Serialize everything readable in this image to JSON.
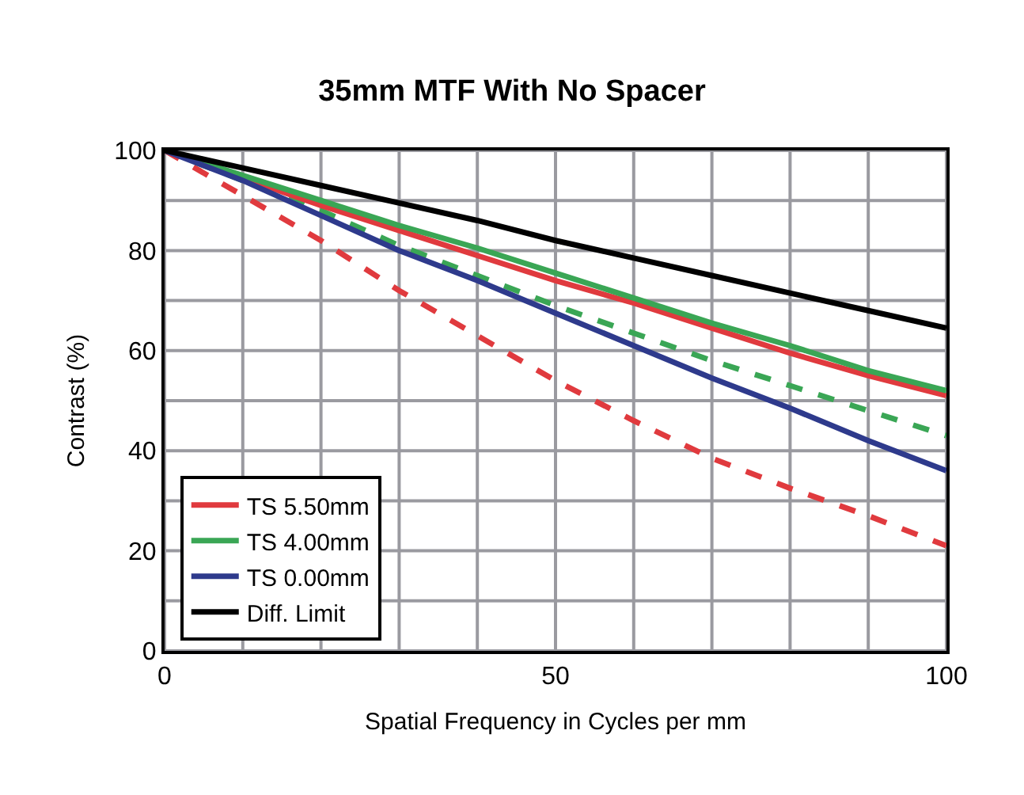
{
  "chart_data": {
    "type": "line",
    "title": "35mm MTF With No Spacer",
    "xlabel": "Spatial Frequency in Cycles per mm",
    "ylabel": "Contrast (%)",
    "x": [
      0,
      10,
      20,
      30,
      40,
      50,
      60,
      70,
      80,
      90,
      100
    ],
    "series": [
      {
        "name": "TS 5.50mm",
        "color": "#e03a3e",
        "values": [
          100,
          94.5,
          89,
          84,
          79,
          74,
          69.5,
          64.5,
          59.5,
          55,
          51
        ]
      },
      {
        "name": "TS 4.00mm",
        "color": "#3aa655",
        "values": [
          100,
          95,
          90,
          85,
          80.5,
          75.5,
          70.5,
          65.5,
          61,
          56,
          52
        ]
      },
      {
        "name": "TS 0.00mm",
        "color": "#2e3a8c",
        "values": [
          100,
          94,
          87,
          80,
          74,
          67.5,
          61,
          54.5,
          48.5,
          42,
          36
        ]
      },
      {
        "name": "Diff. Limit",
        "color": "#000000",
        "values": [
          100,
          96.5,
          93,
          89.5,
          86,
          82,
          78.5,
          75,
          71.5,
          68,
          64.5
        ]
      },
      {
        "color": "#3aa655",
        "line_style": "dashed",
        "values": [
          100,
          94,
          88,
          81,
          75,
          69,
          63.5,
          58,
          53,
          48,
          43
        ]
      },
      {
        "color": "#e03a3e",
        "line_style": "dashed",
        "values": [
          100,
          91,
          82,
          72,
          63,
          54,
          46,
          38.5,
          32.5,
          27,
          21
        ]
      }
    ],
    "xlim": [
      0,
      100
    ],
    "ylim": [
      0,
      100
    ],
    "xticks": [
      0,
      50,
      100
    ],
    "yticks": [
      0,
      20,
      40,
      60,
      80,
      100
    ],
    "grid": true,
    "legend": "bottom left",
    "line_style": "solid",
    "marker": "none"
  }
}
